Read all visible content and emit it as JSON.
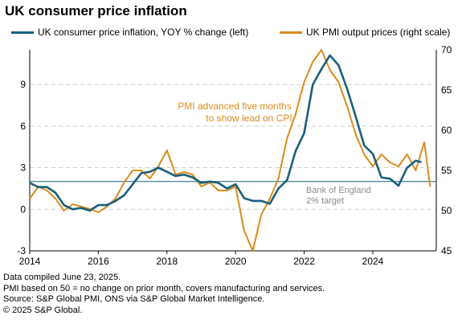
{
  "header": {
    "title": "UK consumer price inflation"
  },
  "chart_data": {
    "type": "line",
    "title": "UK consumer price inflation",
    "x_ticks": [
      "2014",
      "2016",
      "2018",
      "2020",
      "2022",
      "2024"
    ],
    "x_range": [
      2014.0,
      2025.85
    ],
    "y_left": {
      "ticks": [
        "-3",
        "0",
        "3",
        "6",
        "9"
      ],
      "range": [
        -3,
        11.5
      ]
    },
    "y_right": {
      "ticks": [
        "45",
        "50",
        "55",
        "60",
        "65",
        "70"
      ],
      "range": [
        45,
        70
      ]
    },
    "grid": "horizontal dashed",
    "legend_position": "top",
    "series": [
      {
        "name": "UK consumer price inflation, YOY % change (left)",
        "axis": "left",
        "color": "#1a5f7a",
        "points": [
          [
            2014.0,
            1.9
          ],
          [
            2014.25,
            1.6
          ],
          [
            2014.5,
            1.6
          ],
          [
            2014.75,
            1.2
          ],
          [
            2015.0,
            0.3
          ],
          [
            2015.25,
            0.0
          ],
          [
            2015.5,
            0.1
          ],
          [
            2015.75,
            -0.1
          ],
          [
            2016.0,
            0.3
          ],
          [
            2016.25,
            0.3
          ],
          [
            2016.5,
            0.6
          ],
          [
            2016.75,
            1.0
          ],
          [
            2017.0,
            1.8
          ],
          [
            2017.25,
            2.6
          ],
          [
            2017.5,
            2.7
          ],
          [
            2017.75,
            3.0
          ],
          [
            2018.0,
            2.7
          ],
          [
            2018.25,
            2.4
          ],
          [
            2018.5,
            2.5
          ],
          [
            2018.75,
            2.3
          ],
          [
            2019.0,
            1.9
          ],
          [
            2019.25,
            2.0
          ],
          [
            2019.5,
            1.9
          ],
          [
            2019.75,
            1.5
          ],
          [
            2020.0,
            1.8
          ],
          [
            2020.25,
            0.8
          ],
          [
            2020.5,
            0.6
          ],
          [
            2020.75,
            0.6
          ],
          [
            2021.0,
            0.4
          ],
          [
            2021.25,
            1.5
          ],
          [
            2021.5,
            2.1
          ],
          [
            2021.75,
            4.2
          ],
          [
            2022.0,
            5.5
          ],
          [
            2022.25,
            9.0
          ],
          [
            2022.5,
            10.1
          ],
          [
            2022.75,
            11.1
          ],
          [
            2023.0,
            10.4
          ],
          [
            2023.25,
            8.7
          ],
          [
            2023.5,
            6.7
          ],
          [
            2023.75,
            4.6
          ],
          [
            2024.0,
            4.0
          ],
          [
            2024.25,
            2.3
          ],
          [
            2024.5,
            2.2
          ],
          [
            2024.75,
            1.7
          ],
          [
            2025.0,
            3.0
          ],
          [
            2025.25,
            3.5
          ],
          [
            2025.42,
            3.4
          ]
        ]
      },
      {
        "name": "UK PMI output prices (right scale)",
        "axis": "right",
        "color": "#d98c1f",
        "points": [
          [
            2014.0,
            51.5
          ],
          [
            2014.25,
            53.0
          ],
          [
            2014.5,
            52.5
          ],
          [
            2014.75,
            51.5
          ],
          [
            2015.0,
            50.0
          ],
          [
            2015.25,
            50.8
          ],
          [
            2015.5,
            50.5
          ],
          [
            2015.75,
            50.2
          ],
          [
            2016.0,
            49.8
          ],
          [
            2016.25,
            50.5
          ],
          [
            2016.5,
            51.5
          ],
          [
            2016.75,
            53.5
          ],
          [
            2017.0,
            55.0
          ],
          [
            2017.25,
            55.0
          ],
          [
            2017.5,
            54.0
          ],
          [
            2017.75,
            55.5
          ],
          [
            2018.0,
            57.5
          ],
          [
            2018.25,
            54.5
          ],
          [
            2018.5,
            54.8
          ],
          [
            2018.75,
            54.5
          ],
          [
            2019.0,
            53.0
          ],
          [
            2019.25,
            53.5
          ],
          [
            2019.5,
            52.5
          ],
          [
            2019.75,
            52.5
          ],
          [
            2020.0,
            53.0
          ],
          [
            2020.25,
            47.5
          ],
          [
            2020.5,
            45.0
          ],
          [
            2020.75,
            49.5
          ],
          [
            2021.0,
            51.5
          ],
          [
            2021.25,
            54.0
          ],
          [
            2021.5,
            59.0
          ],
          [
            2021.75,
            62.0
          ],
          [
            2022.0,
            66.0
          ],
          [
            2022.25,
            68.5
          ],
          [
            2022.5,
            70.0
          ],
          [
            2022.75,
            67.5
          ],
          [
            2023.0,
            66.0
          ],
          [
            2023.25,
            63.0
          ],
          [
            2023.5,
            59.5
          ],
          [
            2023.75,
            57.0
          ],
          [
            2024.0,
            55.5
          ],
          [
            2024.25,
            57.0
          ],
          [
            2024.5,
            56.0
          ],
          [
            2024.75,
            55.5
          ],
          [
            2025.0,
            57.0
          ],
          [
            2025.25,
            55.0
          ],
          [
            2025.5,
            58.5
          ],
          [
            2025.67,
            53.0
          ]
        ]
      }
    ],
    "reference_line": {
      "axis": "left",
      "value": 2,
      "label_line1": "Bank of England",
      "label_line2": "2% target"
    },
    "annotation": {
      "line1": "PMI advanced five months",
      "line2": "to show lead on CPI"
    }
  },
  "footnotes": [
    "Data compiled June 23, 2025.",
    "PMI based on 50 = no change on prior month, covers manufacturing and services.",
    "Source: S&P Global PMI, ONS via S&P Global Market Intelligence.",
    "© 2025 S&P Global."
  ]
}
